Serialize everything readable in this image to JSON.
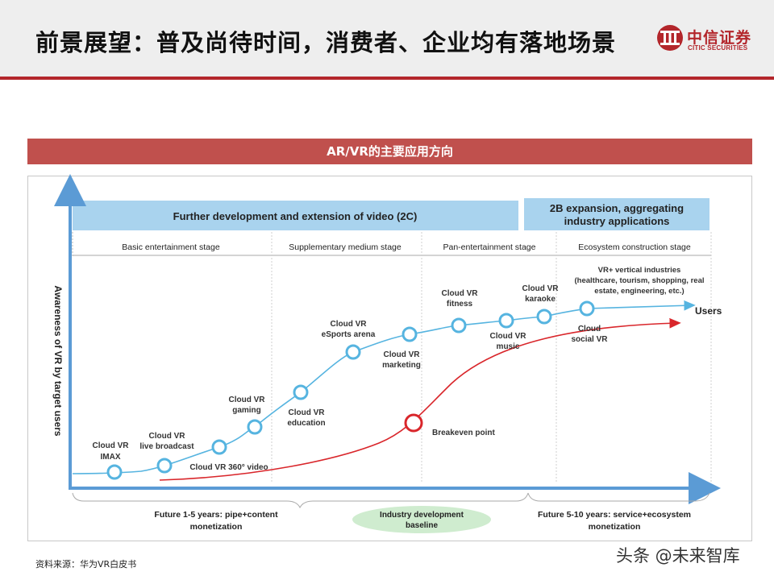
{
  "header": {
    "title": "前景展望：普及尚待时间，消费者、企业均有落地场景",
    "logo_cn": "中信证券",
    "logo_en": "CITIC SECURITIES",
    "accent_color": "#b3262b"
  },
  "section_title": "AR/VR的主要应用方向",
  "diagram": {
    "banner_2c": "Further development and extension of video (2C)",
    "banner_2b_line1": "2B expansion, aggregating",
    "banner_2b_line2": "industry applications",
    "stages": [
      "Basic entertainment stage",
      "Supplementary medium stage",
      "Pan-entertainment stage",
      "Ecosystem construction stage"
    ],
    "y_axis_label": "Awareness of VR by target users",
    "users_label": "Users",
    "vertical_line1": "VR+ vertical industries",
    "vertical_line2": "(healthcare, tourism, shopping, real",
    "vertical_line3": "estate, engineering, etc.)",
    "breakeven_label": "Breakeven point",
    "nodes": [
      {
        "line1": "Cloud VR",
        "line2": "IMAX"
      },
      {
        "line1": "Cloud VR",
        "line2": "live broadcast"
      },
      {
        "line1": "Cloud VR 360° video",
        "line2": ""
      },
      {
        "line1": "Cloud VR",
        "line2": "gaming"
      },
      {
        "line1": "Cloud VR",
        "line2": "education"
      },
      {
        "line1": "Cloud VR",
        "line2": "eSports arena"
      },
      {
        "line1": "Cloud VR",
        "line2": "marketing"
      },
      {
        "line1": "Cloud VR",
        "line2": "fitness"
      },
      {
        "line1": "Cloud VR",
        "line2": "music"
      },
      {
        "line1": "Cloud VR",
        "line2": "karaoke"
      },
      {
        "line1": "Cloud",
        "line2": "social VR"
      }
    ],
    "bottom_left_line1": "Future 1-5 years: pipe+content",
    "bottom_left_line2": "monetization",
    "bottom_mid_line1": "Industry development",
    "bottom_mid_line2": "baseline",
    "bottom_right_line1": "Future 5-10 years: service+ecosystem",
    "bottom_right_line2": "monetization",
    "colors": {
      "banner": "#a9d3ee",
      "axis": "#5b9bd5",
      "users_curve": "#56b4e0",
      "breakeven_curve": "#d9262b",
      "baseline_ellipse": "#cfeccf"
    }
  },
  "source": "资料来源：华为VR白皮书",
  "watermark": "头条 @未来智库"
}
